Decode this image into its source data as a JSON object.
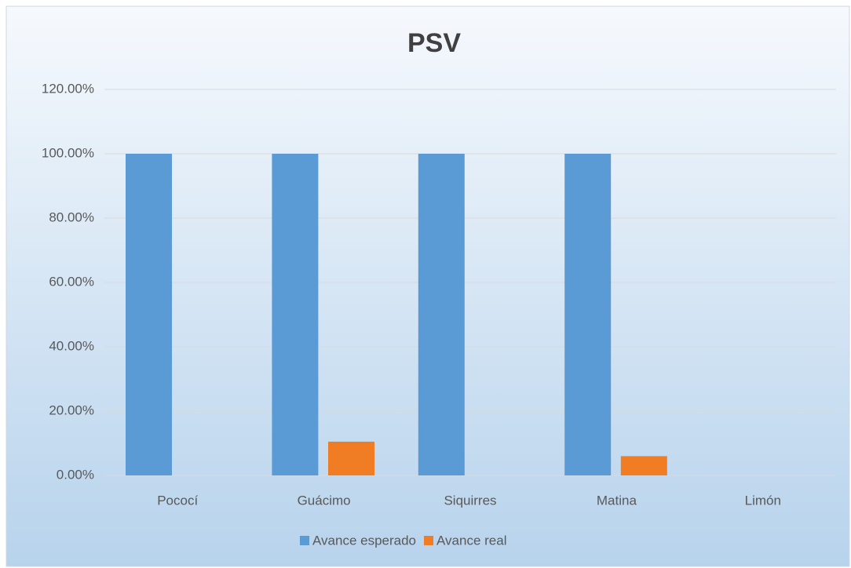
{
  "chart_data": {
    "type": "bar",
    "title": "PSV",
    "categories": [
      "Pococí",
      "Guácimo",
      "Siquirres",
      "Matina",
      "Limón"
    ],
    "series": [
      {
        "name": "Avance esperado",
        "color": "#5b9bd5",
        "values": [
          100,
          100,
          100,
          100,
          0
        ]
      },
      {
        "name": "Avance real",
        "color": "#f07d24",
        "values": [
          0,
          10.5,
          0,
          6,
          0
        ]
      }
    ],
    "ylim": [
      0,
      120
    ],
    "yticks": [
      {
        "value": 0,
        "label": "0.00%"
      },
      {
        "value": 20,
        "label": "20.00%"
      },
      {
        "value": 40,
        "label": "40.00%"
      },
      {
        "value": 60,
        "label": "60.00%"
      },
      {
        "value": 80,
        "label": "80.00%"
      },
      {
        "value": 100,
        "label": "100.00%"
      },
      {
        "value": 120,
        "label": "120.00%"
      }
    ],
    "grid": true,
    "legend": "bottom"
  }
}
